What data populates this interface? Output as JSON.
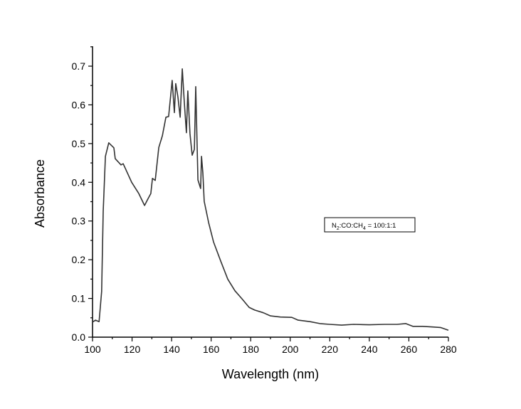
{
  "chart_data": {
    "type": "line",
    "title": "",
    "xlabel": "Wavelength (nm)",
    "ylabel": "Absorbance",
    "xlim": [
      100,
      280
    ],
    "ylim": [
      0,
      0.7
    ],
    "xticks": [
      100,
      120,
      140,
      160,
      180,
      200,
      220,
      240,
      260,
      280
    ],
    "yticks": [
      0.0,
      0.1,
      0.2,
      0.3,
      0.4,
      0.5,
      0.6,
      0.7
    ],
    "xtick_labels": [
      "100",
      "120",
      "140",
      "160",
      "180",
      "200",
      "220",
      "240",
      "260",
      "280"
    ],
    "ytick_labels": [
      "0.0",
      "0.1",
      "0.2",
      "0.3",
      "0.4",
      "0.5",
      "0.6",
      "0.7"
    ],
    "grid": false,
    "legend": {
      "placement": "right",
      "label_parts": [
        "N",
        "2",
        ":CO:CH",
        "4",
        " = 100:1:1"
      ]
    },
    "series": [
      {
        "name": "N2:CO:CH4 = 100:1:1",
        "color": "#333333",
        "x": [
          100,
          101.5,
          103.3,
          104.6,
          105.4,
          106.5,
          108.2,
          110.8,
          111.5,
          114.4,
          115.5,
          119.8,
          123.4,
          126.3,
          128.1,
          129.5,
          130.3,
          131.7,
          133.5,
          135.3,
          137.1,
          138.5,
          140.3,
          141.4,
          142.1,
          143.2,
          144.3,
          145.4,
          146.4,
          147.5,
          148.2,
          149.3,
          150.4,
          151.5,
          152.2,
          153.3,
          154.7,
          155.1,
          155.8,
          156.5,
          158.7,
          161.2,
          164.8,
          168.4,
          172,
          175.6,
          179.2,
          182,
          186.4,
          190,
          195,
          200.8,
          204,
          210,
          215,
          220,
          226,
          232,
          240,
          247.6,
          254,
          258.4,
          262,
          267,
          272.8,
          276,
          280
        ],
        "y": [
          0.039,
          0.044,
          0.04,
          0.118,
          0.325,
          0.467,
          0.502,
          0.489,
          0.461,
          0.445,
          0.448,
          0.4,
          0.371,
          0.34,
          0.358,
          0.371,
          0.41,
          0.405,
          0.49,
          0.52,
          0.568,
          0.57,
          0.663,
          0.58,
          0.655,
          0.62,
          0.568,
          0.693,
          0.608,
          0.528,
          0.636,
          0.526,
          0.47,
          0.485,
          0.647,
          0.406,
          0.384,
          0.467,
          0.425,
          0.351,
          0.296,
          0.246,
          0.197,
          0.15,
          0.12,
          0.099,
          0.077,
          0.07,
          0.063,
          0.055,
          0.052,
          0.051,
          0.044,
          0.04,
          0.035,
          0.033,
          0.031,
          0.033,
          0.032,
          0.033,
          0.033,
          0.035,
          0.028,
          0.028,
          0.026,
          0.025,
          0.018
        ]
      }
    ]
  }
}
